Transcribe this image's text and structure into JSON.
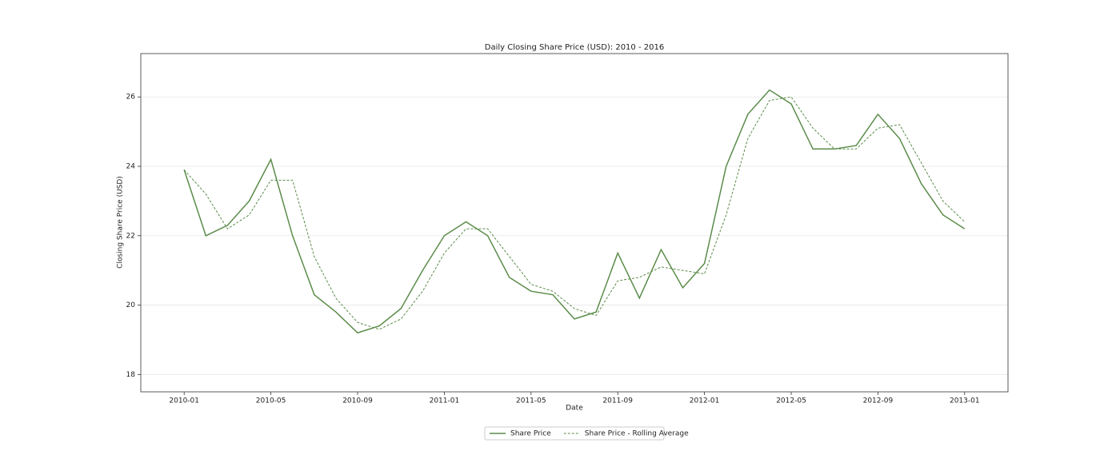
{
  "chart_data": {
    "type": "line",
    "title": "Daily Closing Share Price (USD): 2010 - 2016",
    "x_label": "Date",
    "y_label": "Closing Share Price (USD)",
    "x": [
      "2010-01",
      "2010-02",
      "2010-03",
      "2010-04",
      "2010-05",
      "2010-06",
      "2010-07",
      "2010-08",
      "2010-09",
      "2010-10",
      "2010-11",
      "2010-12",
      "2011-01",
      "2011-02",
      "2011-03",
      "2011-04",
      "2011-05",
      "2011-06",
      "2011-07",
      "2011-08",
      "2011-09",
      "2011-10",
      "2011-11",
      "2011-12",
      "2012-01",
      "2012-02",
      "2012-03",
      "2012-04",
      "2012-05",
      "2012-06",
      "2012-07",
      "2012-08",
      "2012-09",
      "2012-10",
      "2012-11",
      "2012-12",
      "2013-01"
    ],
    "series": [
      {
        "name": "Share Price",
        "color": "#5b8c4a",
        "style": "solid",
        "values": [
          23.9,
          22.0,
          22.3,
          23.0,
          24.2,
          22.0,
          20.3,
          19.8,
          19.2,
          19.4,
          19.9,
          21.0,
          22.0,
          22.4,
          22.0,
          20.8,
          20.4,
          20.3,
          19.6,
          19.8,
          21.5,
          20.2,
          21.6,
          20.5,
          21.2,
          24.0,
          25.5,
          26.2,
          25.8,
          24.5,
          24.5,
          24.6,
          25.5,
          24.8,
          23.5,
          22.6,
          22.2
        ]
      },
      {
        "name": "Share Price - Rolling Average",
        "color": "#5b8c4a",
        "style": "dashed",
        "values": [
          23.9,
          23.2,
          22.2,
          22.6,
          23.6,
          23.6,
          21.4,
          20.2,
          19.5,
          19.3,
          19.6,
          20.4,
          21.5,
          22.2,
          22.2,
          21.4,
          20.6,
          20.4,
          19.9,
          19.7,
          20.7,
          20.8,
          21.1,
          21.0,
          20.9,
          22.6,
          24.8,
          25.9,
          26.0,
          25.1,
          24.5,
          24.5,
          25.1,
          25.2,
          24.1,
          23.0,
          22.4
        ]
      }
    ],
    "xlim": [
      "2009-11",
      "2013-03"
    ],
    "xticks": [
      "2010-01",
      "2010-05",
      "2010-09",
      "2011-01",
      "2011-05",
      "2011-09",
      "2012-01",
      "2012-05",
      "2012-09",
      "2013-01"
    ],
    "ylim": [
      17.5,
      27.25
    ],
    "yticks": [
      18,
      20,
      22,
      24,
      26
    ],
    "grid": true,
    "legend": "below"
  }
}
